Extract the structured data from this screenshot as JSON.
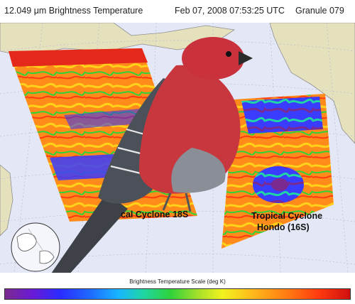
{
  "header": {
    "product": "12.049 μm Brightness Temperature",
    "timestamp": "Feb 07, 2008 07:53:25 UTC",
    "granule": "Granule 079"
  },
  "map": {
    "label_left": "cal Cyclone 18S",
    "label_right_line1": "Tropical Cyclone",
    "label_right_line2": "Hondo (16S)"
  },
  "scale": {
    "title": "Brightness Temperature Scale (deg K)"
  },
  "colors": {
    "ocean": "#e4e8f6",
    "land": "#e6e1bd",
    "grid": "#b6bcd2",
    "bird_red": "#c8373e",
    "bird_grey": "#6a6e76"
  }
}
